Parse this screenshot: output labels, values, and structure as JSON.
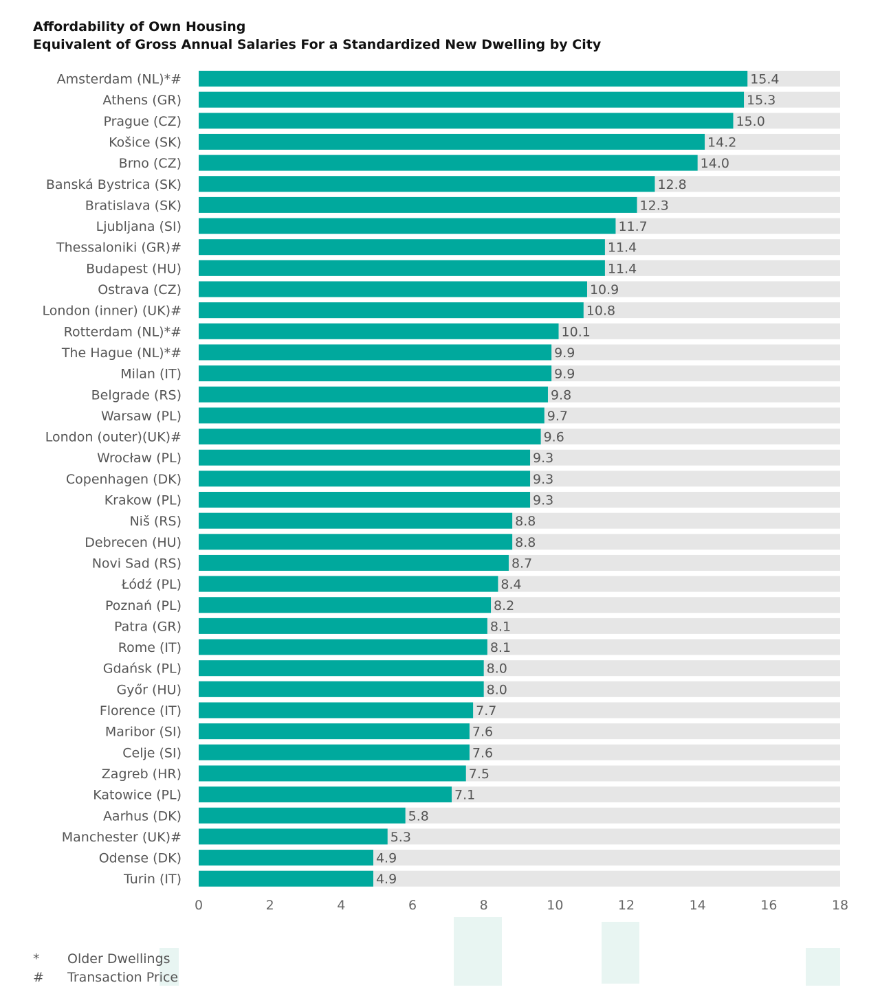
{
  "title_line1": "Affordability of Own Housing",
  "title_line2": "Equivalent of Gross Annual Salaries For a Standardized New Dwelling by City",
  "colors": {
    "bar": "#00a99d",
    "track": "#e6e6e6",
    "label": "#555555"
  },
  "chart_data": {
    "type": "bar",
    "orientation": "horizontal",
    "title": "Affordability of Own Housing — Equivalent of Gross Annual Salaries For a Standardized New Dwelling by City",
    "categories": [
      "Amsterdam (NL)*#",
      "Athens (GR)",
      "Prague (CZ)",
      "Košice (SK)",
      "Brno (CZ)",
      "Banská Bystrica (SK)",
      "Bratislava (SK)",
      "Ljubljana (SI)",
      "Thessaloniki (GR)#",
      "Budapest (HU)",
      "Ostrava (CZ)",
      "London (inner) (UK)#",
      "Rotterdam (NL)*#",
      "The Hague (NL)*#",
      "Milan (IT)",
      "Belgrade (RS)",
      "Warsaw (PL)",
      "London (outer)(UK)#",
      "Wrocław (PL)",
      "Copenhagen (DK)",
      "Krakow (PL)",
      "Niš (RS)",
      "Debrecen (HU)",
      "Novi Sad (RS)",
      "Łódź (PL)",
      "Poznań (PL)",
      "Patra (GR)",
      "Rome (IT)",
      "Gdańsk (PL)",
      "Győr (HU)",
      "Florence (IT)",
      "Maribor (SI)",
      "Celje (SI)",
      "Zagreb (HR)",
      "Katowice (PL)",
      "Aarhus (DK)",
      "Manchester (UK)#",
      "Odense (DK)",
      "Turin (IT)"
    ],
    "values": [
      15.4,
      15.3,
      15.0,
      14.2,
      14.0,
      12.8,
      12.3,
      11.7,
      11.4,
      11.4,
      10.9,
      10.8,
      10.1,
      9.9,
      9.9,
      9.8,
      9.7,
      9.6,
      9.3,
      9.3,
      9.3,
      8.8,
      8.8,
      8.7,
      8.4,
      8.2,
      8.1,
      8.1,
      8.0,
      8.0,
      7.7,
      7.6,
      7.6,
      7.5,
      7.1,
      5.8,
      5.3,
      4.9,
      4.9
    ],
    "value_labels": [
      "15.4",
      "15.3",
      "15.0",
      "14.2",
      "14.0",
      "12.8",
      "12.3",
      "11.7",
      "11.4",
      "11.4",
      "10.9",
      "10.8",
      "10.1",
      "9.9",
      "9.9",
      "9.8",
      "9.7",
      "9.6",
      "9.3",
      "9.3",
      "9.3",
      "8.8",
      "8.8",
      "8.7",
      "8.4",
      "8.2",
      "8.1",
      "8.1",
      "8.0",
      "8.0",
      "7.7",
      "7.6",
      "7.6",
      "7.5",
      "7.1",
      "5.8",
      "5.3",
      "4.9",
      "4.9"
    ],
    "xlim": [
      0,
      18
    ],
    "xticks": [
      "0",
      "2",
      "4",
      "6",
      "8",
      "10",
      "12",
      "14",
      "16",
      "18"
    ],
    "grid": false
  },
  "legend": [
    {
      "symbol": "*",
      "label": "Older Dwellings"
    },
    {
      "symbol": "#",
      "label": "Transaction Price"
    }
  ]
}
